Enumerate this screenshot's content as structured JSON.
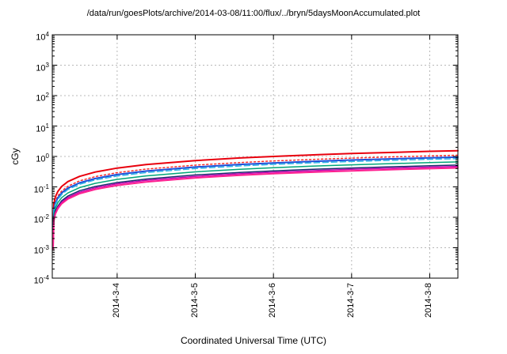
{
  "chart_data": {
    "type": "line",
    "title": "/data/run/goesPlots/archive/2014-03-08/11:00/flux/../bryn/5daysMoonAccumulated.plot",
    "xlabel": "Coordinated Universal Time (UTC)",
    "ylabel": "cGy",
    "y_scale": "log",
    "ylim": [
      0.0001,
      10000
    ],
    "y_tick_exponents": [
      4,
      3,
      2,
      1,
      0,
      -1,
      -2,
      -3,
      -4
    ],
    "x_unit": "days since plot start",
    "x_range_days": [
      0,
      5.19
    ],
    "x_ticks": [
      {
        "t": 0.83,
        "label": "2014-3-4"
      },
      {
        "t": 1.83,
        "label": "2014-3-5"
      },
      {
        "t": 2.83,
        "label": "2014-3-6"
      },
      {
        "t": 3.83,
        "label": "2014-3-7"
      },
      {
        "t": 4.83,
        "label": "2014-3-8"
      }
    ],
    "grid": true,
    "legend": "none",
    "x_days": [
      0.01,
      0.02,
      0.04,
      0.07,
      0.12,
      0.2,
      0.35,
      0.55,
      0.83,
      1.2,
      1.83,
      2.4,
      2.83,
      3.4,
      3.83,
      4.4,
      4.83,
      5.19
    ],
    "series": [
      {
        "name": "accum-red",
        "color": "#e8000d",
        "style": "solid",
        "width": 2,
        "y": [
          0.0025,
          0.028,
          0.047,
          0.07,
          0.103,
          0.149,
          0.222,
          0.308,
          0.414,
          0.54,
          0.732,
          0.89,
          1.002,
          1.143,
          1.245,
          1.376,
          1.472,
          1.55
        ]
      },
      {
        "name": "accum-red-dotted",
        "color": "#ff2d2d",
        "style": "dotted",
        "width": 1.5,
        "y": [
          0.0021,
          0.02,
          0.033,
          0.05,
          0.073,
          0.105,
          0.158,
          0.218,
          0.294,
          0.383,
          0.519,
          0.631,
          0.711,
          0.811,
          0.884,
          0.977,
          1.044,
          1.1
        ]
      },
      {
        "name": "accum-blue",
        "color": "#1f4fd8",
        "style": "solid",
        "width": 2,
        "y": [
          0.0019,
          0.017,
          0.029,
          0.043,
          0.063,
          0.091,
          0.136,
          0.189,
          0.254,
          0.331,
          0.449,
          0.545,
          0.614,
          0.7,
          0.763,
          0.843,
          0.902,
          0.95
        ]
      },
      {
        "name": "accum-skyblue-dashed",
        "color": "#2db4e8",
        "style": "dashed",
        "width": 1.5,
        "y": [
          0.0017,
          0.016,
          0.026,
          0.038,
          0.056,
          0.082,
          0.122,
          0.169,
          0.227,
          0.296,
          0.401,
          0.488,
          0.549,
          0.627,
          0.683,
          0.755,
          0.807,
          0.85
        ]
      },
      {
        "name": "accum-teal",
        "color": "#00a678",
        "style": "solid",
        "width": 1.5,
        "y": [
          0.0014,
          0.012,
          0.02,
          0.03,
          0.044,
          0.063,
          0.095,
          0.131,
          0.176,
          0.23,
          0.312,
          0.379,
          0.427,
          0.487,
          0.53,
          0.586,
          0.627,
          0.66
        ]
      },
      {
        "name": "accum-navy",
        "color": "#1a2a6e",
        "style": "solid",
        "width": 1.5,
        "y": [
          0.0012,
          0.0095,
          0.016,
          0.023,
          0.035,
          0.05,
          0.075,
          0.103,
          0.139,
          0.181,
          0.246,
          0.298,
          0.336,
          0.383,
          0.418,
          0.462,
          0.494,
          0.52
        ]
      },
      {
        "name": "accum-magenta",
        "color": "#c400b0",
        "style": "solid",
        "width": 1.5,
        "y": [
          0.001,
          0.0086,
          0.014,
          0.021,
          0.031,
          0.045,
          0.067,
          0.093,
          0.126,
          0.164,
          0.222,
          0.27,
          0.304,
          0.347,
          0.378,
          0.417,
          0.446,
          0.47
        ]
      },
      {
        "name": "accum-pink",
        "color": "#ff1f8f",
        "style": "solid",
        "width": 2,
        "y": [
          0.0009,
          0.0077,
          0.013,
          0.019,
          0.028,
          0.04,
          0.06,
          0.083,
          0.112,
          0.146,
          0.198,
          0.241,
          0.271,
          0.31,
          0.337,
          0.373,
          0.399,
          0.42
        ]
      }
    ],
    "colors": {
      "axis": "#000000",
      "grid": "#b8b8b8",
      "background": "#ffffff"
    }
  }
}
